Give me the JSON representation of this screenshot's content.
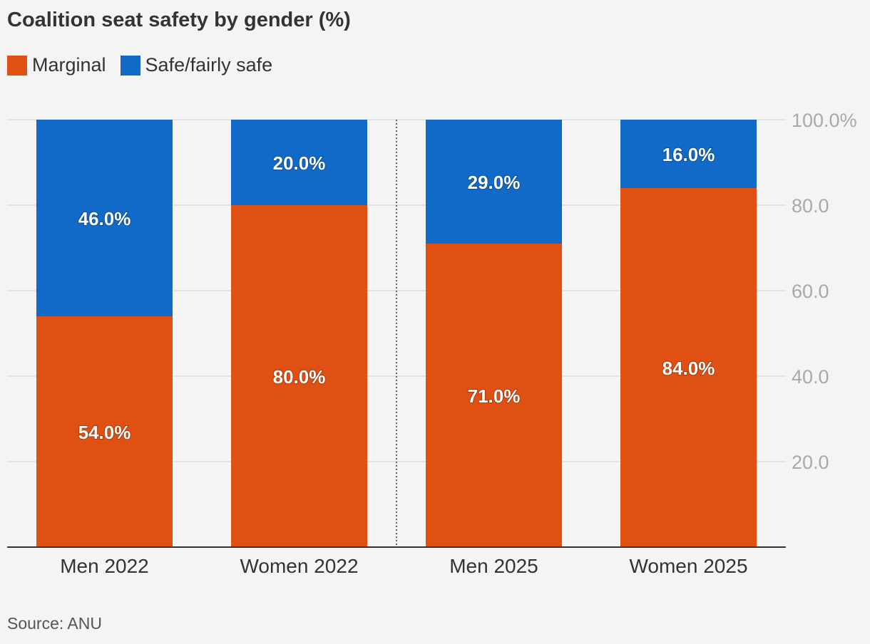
{
  "title": "Coalition seat safety by gender (%)",
  "source": "Source: ANU",
  "colors": {
    "marginal": "#e05012",
    "safe": "#116ac8",
    "grid": "#dcdcdc",
    "axis_text": "#a9a9a9",
    "category_text": "#333333"
  },
  "chart_data": {
    "type": "bar",
    "stacked": true,
    "categories": [
      "Men 2022",
      "Women 2022",
      "Men 2025",
      "Women 2025"
    ],
    "series": [
      {
        "name": "Marginal",
        "values": [
          54.0,
          80.0,
          71.0,
          84.0
        ],
        "labels": [
          "54.0%",
          "80.0%",
          "71.0%",
          "84.0%"
        ]
      },
      {
        "name": "Safe/fairly safe",
        "values": [
          46.0,
          20.0,
          29.0,
          16.0
        ],
        "labels": [
          "46.0%",
          "20.0%",
          "29.0%",
          "16.0%"
        ]
      }
    ],
    "ylim": [
      0,
      100
    ],
    "yticks": [
      20,
      40,
      60,
      80,
      100
    ],
    "ytick_labels": [
      "20.0",
      "40.0",
      "60.0",
      "80.0",
      "100.0%"
    ],
    "y_axis_position": "right",
    "grid": true,
    "legend_position": "top-left",
    "divider_after_category": 1
  }
}
